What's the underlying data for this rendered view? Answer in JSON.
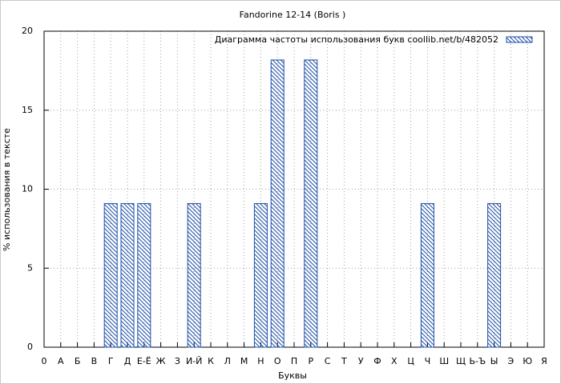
{
  "chart_data": {
    "type": "bar",
    "title": "Fandorine 12-14 (Boris )",
    "x_label": "Буквы",
    "y_label": "% использования в тексте",
    "categories": [
      "0",
      "А",
      "Б",
      "В",
      "Г",
      "Д",
      "Е-Ё",
      "Ж",
      "З",
      "И-Й",
      "К",
      "Л",
      "М",
      "Н",
      "О",
      "П",
      "Р",
      "С",
      "Т",
      "У",
      "Ф",
      "Х",
      "Ц",
      "Ч",
      "Ш",
      "Щ",
      "Ь-Ъ",
      "Ы",
      "Э",
      "Ю",
      "Я"
    ],
    "series": [
      {
        "name": "Диаграмма частоты использования букв  coollib.net/b/482052",
        "color": "#1f4fa8",
        "values": [
          0,
          0,
          0,
          0,
          9.09,
          9.09,
          9.09,
          0,
          0,
          9.09,
          0,
          0,
          0,
          9.09,
          18.18,
          0,
          18.18,
          0,
          0,
          0,
          0,
          0,
          0,
          9.09,
          0,
          0,
          0,
          9.09,
          0,
          0,
          0
        ]
      }
    ],
    "ylim": [
      0,
      20
    ],
    "yticks": [
      0,
      5,
      10,
      15,
      20
    ],
    "grid": true
  }
}
